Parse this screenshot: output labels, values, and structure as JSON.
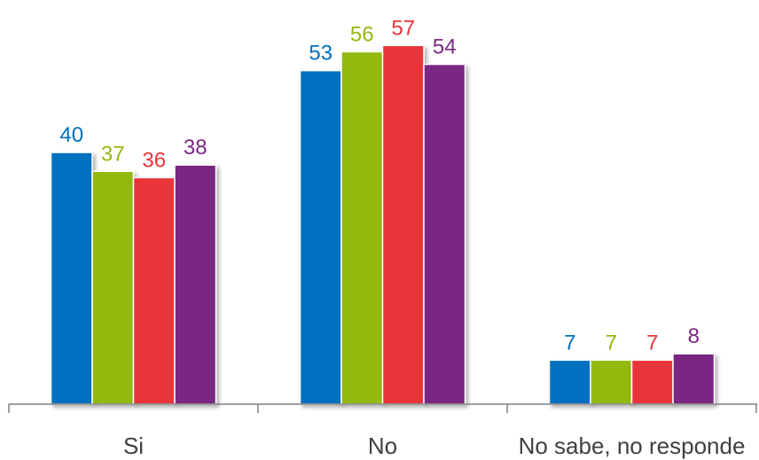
{
  "chart_data": {
    "type": "bar",
    "title": "",
    "xlabel": "",
    "ylabel": "",
    "categories": [
      "Si",
      "No",
      "No sabe, no responde"
    ],
    "series": [
      {
        "color": "#0070C0",
        "values": [
          40,
          53,
          7
        ]
      },
      {
        "color": "#92B90E",
        "values": [
          37,
          56,
          7
        ]
      },
      {
        "color": "#E8343B",
        "values": [
          36,
          57,
          7
        ]
      },
      {
        "color": "#7A2883",
        "values": [
          38,
          54,
          8
        ]
      }
    ],
    "ylim": [
      0,
      60
    ],
    "grid": false,
    "legend": "none",
    "data_labels": true
  }
}
